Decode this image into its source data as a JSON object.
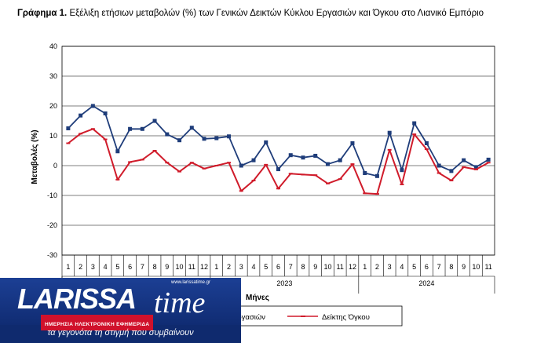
{
  "title_bold": "Γράφημα 1.",
  "title_rest": " Εξέλιξη ετήσιων μεταβολών (%) των Γενικών Δεικτών Κύκλου Εργασιών και Όγκου στο Λιανικό Εμπόριο",
  "colors": {
    "turnover": "#1f3d7a",
    "volume": "#d01c2b",
    "grid": "#000000"
  },
  "chart_data": {
    "type": "line",
    "title": "Εξέλιξη ετήσιων μεταβολών (%) των Γενικών Δεικτών Κύκλου Εργασιών και Όγκου στο Λιανικό Εμπόριο",
    "ylabel": "Μεταβολές (%)",
    "xlabel": "Μήνες",
    "ylim": [
      -30,
      40
    ],
    "yticks": [
      40,
      30,
      20,
      10,
      0,
      -10,
      -20,
      -30
    ],
    "years": [
      {
        "label": "",
        "months": [
          "1",
          "2",
          "3",
          "4",
          "5",
          "6",
          "7",
          "8",
          "9",
          "10",
          "11",
          "12"
        ]
      },
      {
        "label": "2023",
        "months": [
          "1",
          "2",
          "3",
          "4",
          "5",
          "6",
          "7",
          "8",
          "9",
          "10",
          "11",
          "12"
        ]
      },
      {
        "label": "2024",
        "months": [
          "1",
          "2",
          "3",
          "4",
          "5",
          "6",
          "7",
          "8",
          "9",
          "10",
          "11"
        ]
      }
    ],
    "series": [
      {
        "name": "Δείκτης Κύκλου Εργασιών",
        "legend_visible": "εργασιών",
        "marker": "square",
        "values": [
          12.5,
          16.8,
          20.0,
          17.5,
          4.8,
          12.3,
          12.3,
          15.0,
          10.5,
          8.5,
          12.7,
          9.0,
          9.2,
          9.8,
          0.0,
          1.8,
          7.8,
          -1.2,
          3.5,
          2.7,
          3.3,
          0.5,
          1.8,
          7.5,
          -2.5,
          -3.5,
          11.0,
          -1.5,
          14.2,
          7.5,
          0.0,
          -1.8,
          1.8,
          -0.5,
          2.0
        ]
      },
      {
        "name": "Δείκτης Όγκου",
        "legend_visible": "Δείκτης Όγκου",
        "marker": "dash",
        "values": [
          7.5,
          10.7,
          12.3,
          8.8,
          -4.7,
          1.2,
          2.0,
          5.0,
          1.0,
          -2.0,
          1.0,
          -1.0,
          0.0,
          1.0,
          -8.5,
          -5.0,
          0.3,
          -7.7,
          -2.7,
          -3.0,
          -3.2,
          -6.0,
          -4.5,
          0.5,
          -9.3,
          -9.5,
          5.3,
          -6.3,
          10.5,
          5.5,
          -2.5,
          -5.0,
          -0.5,
          -1.3,
          1.0
        ]
      }
    ]
  },
  "watermark": {
    "brand": "LARISSA",
    "brand2": "time",
    "url": "www.larissatime.gr",
    "tagline": "ΗΜΕΡΗΣΙΑ ΗΛΕΚΤΡΟΝΙΚΗ ΕΦΗΜΕΡΙΔΑ",
    "slogan": "τα γεγονότα τη στιγμή που συμβαίνουν"
  }
}
